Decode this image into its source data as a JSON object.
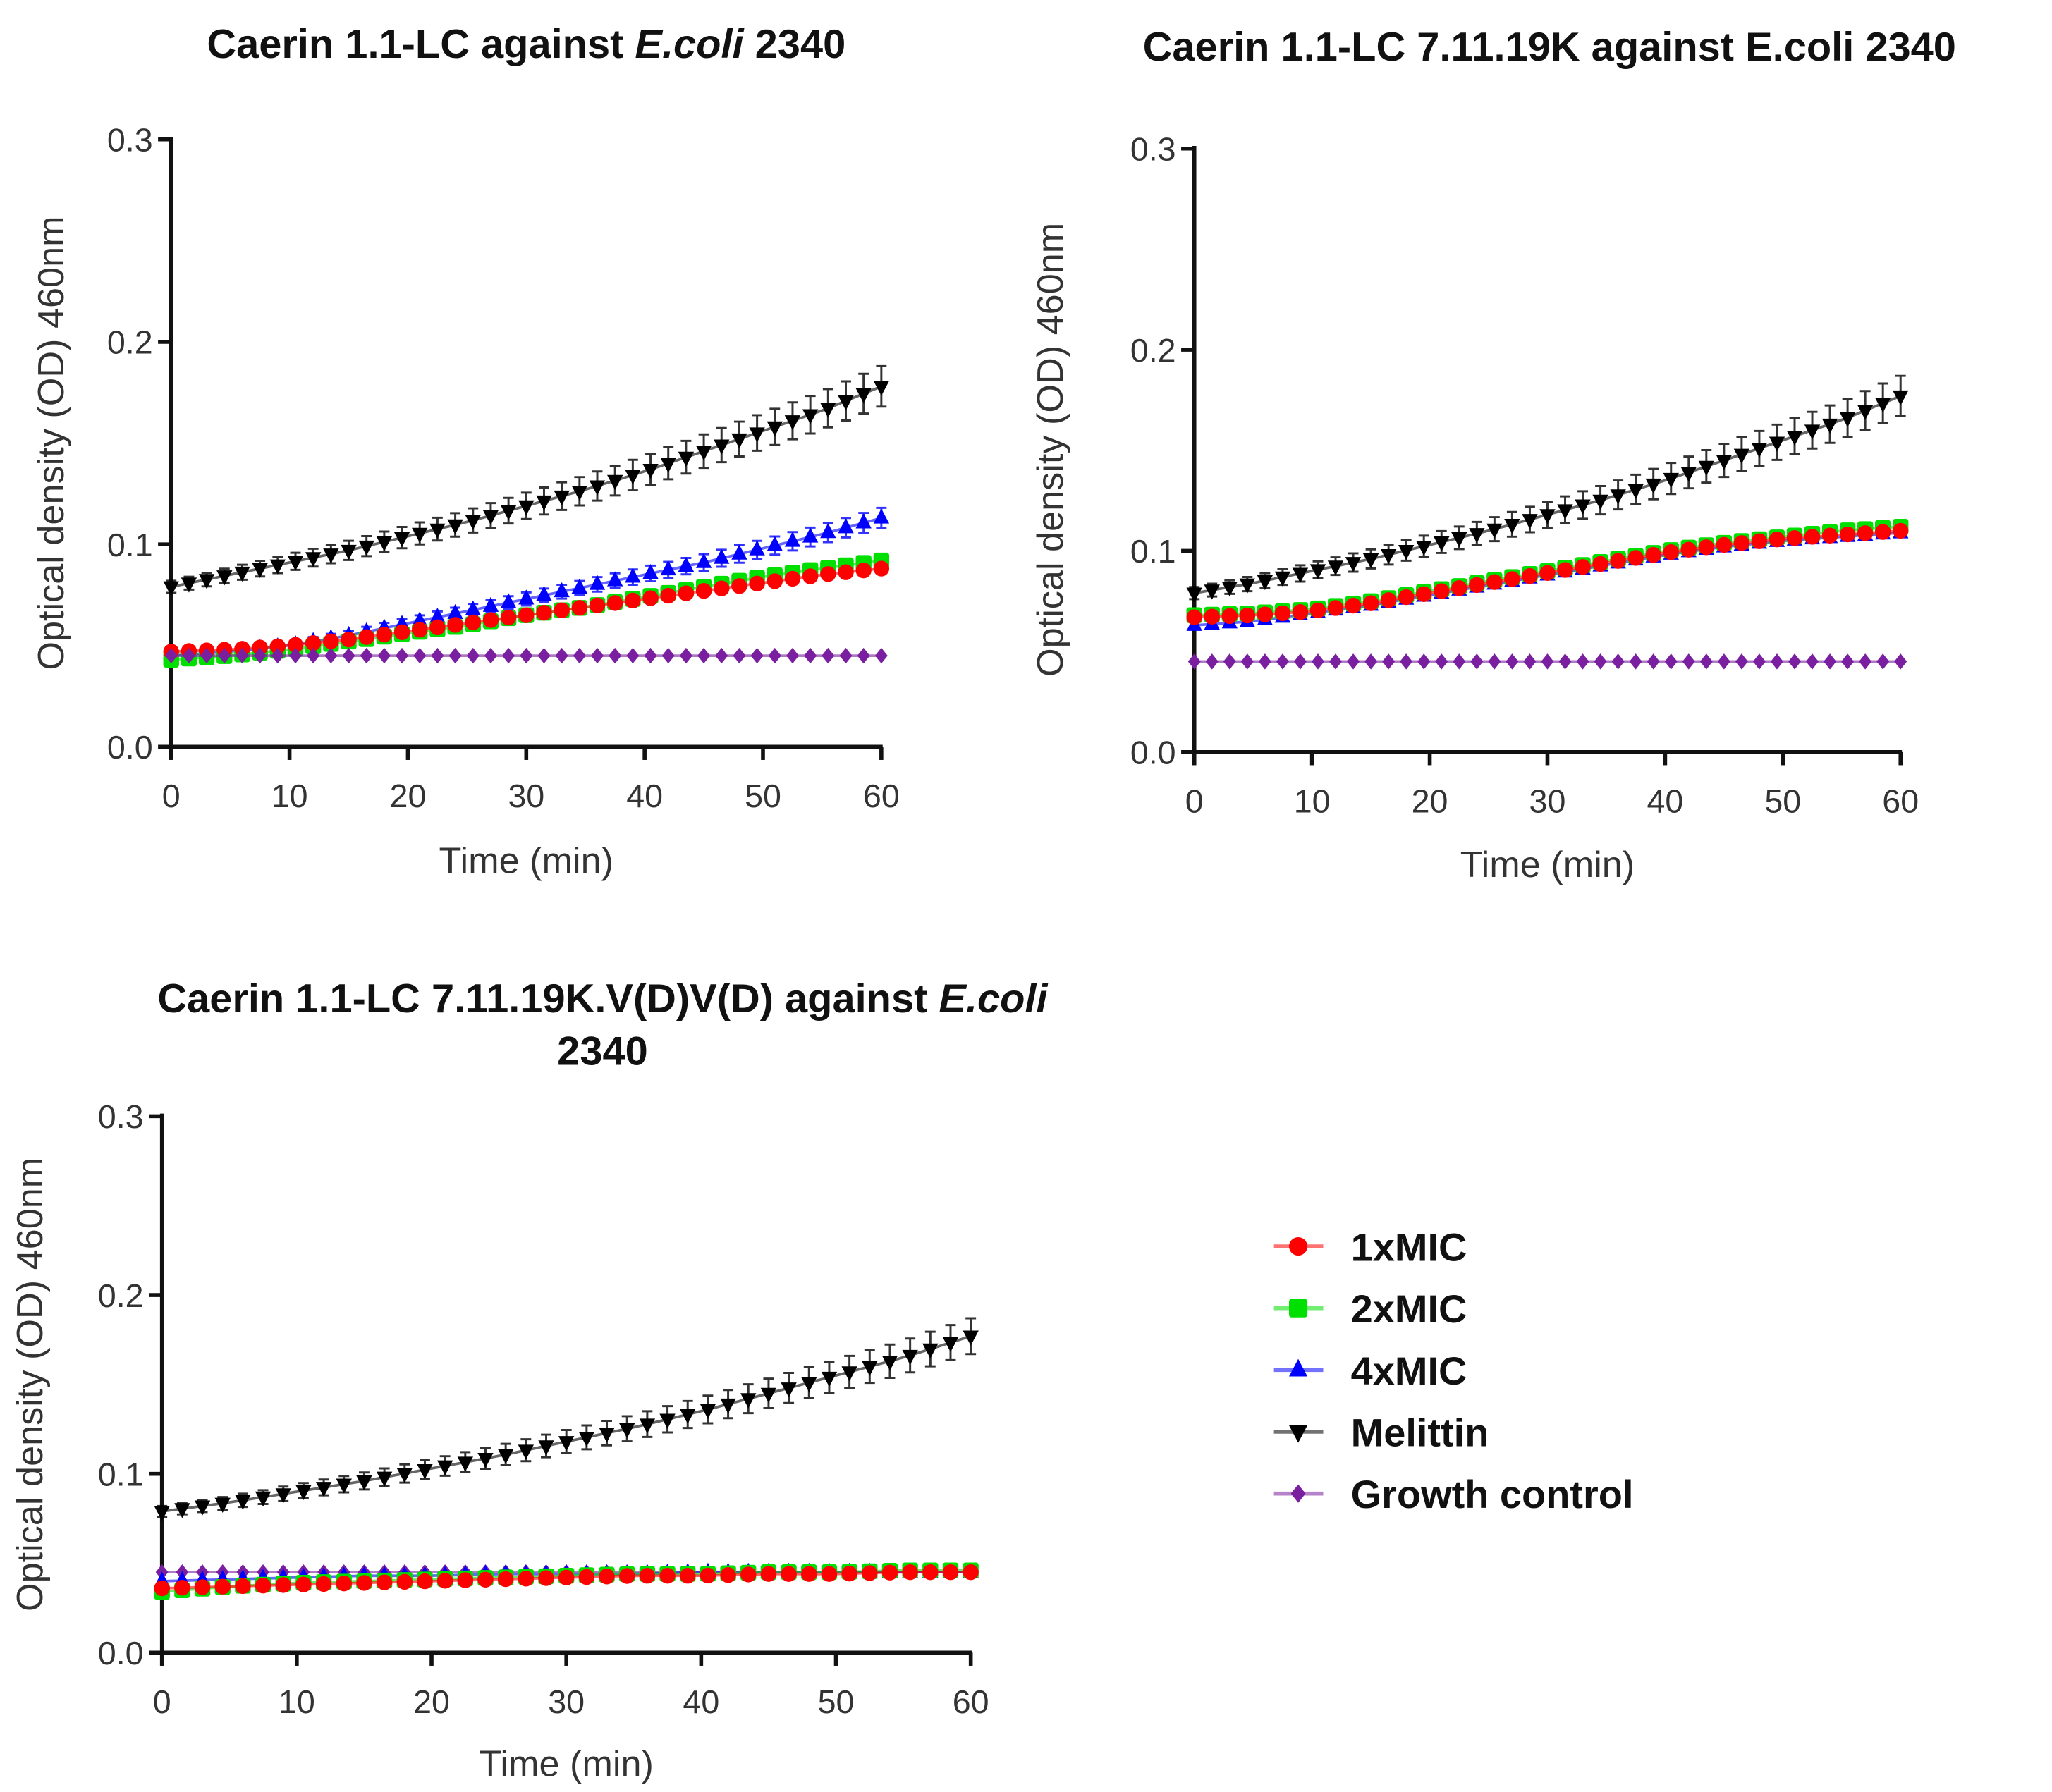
{
  "legend": [
    {
      "name": "1xMIC",
      "color": "#ff0000",
      "marker": "circle"
    },
    {
      "name": "2xMIC",
      "color": "#00e000",
      "marker": "square"
    },
    {
      "name": "4xMIC",
      "color": "#0000ff",
      "marker": "triangle-up"
    },
    {
      "name": "Melittin",
      "color": "#000000",
      "marker": "triangle-down"
    },
    {
      "name": "Growth control",
      "color": "#7a1fa0",
      "marker": "diamond"
    }
  ],
  "chart_data": [
    {
      "type": "line",
      "title": "Caerin 1.1-LC against ",
      "title_italic": "E.coli",
      "title_suffix": " 2340",
      "xlabel": "Time (min)",
      "ylabel": "Optical density (OD) 460nm",
      "xlim": [
        0,
        60
      ],
      "ylim": [
        0,
        0.3
      ],
      "xticks": [
        "0",
        "10",
        "20",
        "30",
        "40",
        "50",
        "60"
      ],
      "yticks": [
        "0.0",
        "0.1",
        "0.2",
        "0.3"
      ],
      "x": [
        0,
        5,
        10,
        15,
        20,
        25,
        30,
        35,
        40,
        45,
        50,
        55,
        60
      ],
      "series": [
        {
          "name": "Melittin",
          "values": [
            0.079,
            0.085,
            0.091,
            0.097,
            0.104,
            0.111,
            0.119,
            0.127,
            0.136,
            0.146,
            0.156,
            0.166,
            0.178
          ],
          "error": 0.01
        },
        {
          "name": "4xMIC",
          "values": [
            0.045,
            0.047,
            0.05,
            0.055,
            0.061,
            0.067,
            0.073,
            0.079,
            0.085,
            0.091,
            0.098,
            0.105,
            0.113
          ],
          "error": 0.005
        },
        {
          "name": "2xMIC",
          "values": [
            0.043,
            0.045,
            0.048,
            0.052,
            0.056,
            0.06,
            0.065,
            0.069,
            0.074,
            0.079,
            0.084,
            0.088,
            0.092
          ],
          "error": 0.002
        },
        {
          "name": "1xMIC",
          "values": [
            0.047,
            0.048,
            0.05,
            0.053,
            0.057,
            0.061,
            0.065,
            0.069,
            0.073,
            0.077,
            0.081,
            0.085,
            0.088
          ],
          "error": 0.002
        },
        {
          "name": "Growth control",
          "values": [
            0.045,
            0.045,
            0.045,
            0.045,
            0.045,
            0.045,
            0.045,
            0.045,
            0.045,
            0.045,
            0.045,
            0.045,
            0.045
          ],
          "error": 0.001
        }
      ]
    },
    {
      "type": "line",
      "title": "Caerin 1.1-LC 7.11.19K against E.coli 2340",
      "title_italic": "",
      "title_suffix": "",
      "xlabel": "Time (min)",
      "ylabel": "Optical density (OD) 460nm",
      "xlim": [
        0,
        60
      ],
      "ylim": [
        0,
        0.3
      ],
      "xticks": [
        "0",
        "10",
        "20",
        "30",
        "40",
        "50",
        "60"
      ],
      "yticks": [
        "0.0",
        "0.1",
        "0.2",
        "0.3"
      ],
      "x": [
        0,
        5,
        10,
        15,
        20,
        25,
        30,
        35,
        40,
        45,
        50,
        55,
        60
      ],
      "series": [
        {
          "name": "Melittin",
          "values": [
            0.079,
            0.084,
            0.09,
            0.096,
            0.103,
            0.11,
            0.118,
            0.126,
            0.135,
            0.145,
            0.155,
            0.165,
            0.177
          ],
          "error": 0.01
        },
        {
          "name": "4xMIC",
          "values": [
            0.063,
            0.065,
            0.069,
            0.073,
            0.078,
            0.083,
            0.088,
            0.093,
            0.098,
            0.102,
            0.105,
            0.107,
            0.109
          ],
          "error": 0.002
        },
        {
          "name": "2xMIC",
          "values": [
            0.068,
            0.069,
            0.071,
            0.075,
            0.08,
            0.085,
            0.09,
            0.095,
            0.1,
            0.104,
            0.107,
            0.11,
            0.112
          ],
          "error": 0.002
        },
        {
          "name": "1xMIC",
          "values": [
            0.067,
            0.068,
            0.07,
            0.074,
            0.079,
            0.084,
            0.089,
            0.094,
            0.099,
            0.103,
            0.106,
            0.108,
            0.11
          ],
          "error": 0.002
        },
        {
          "name": "Growth control",
          "values": [
            0.045,
            0.045,
            0.045,
            0.045,
            0.045,
            0.045,
            0.045,
            0.045,
            0.045,
            0.045,
            0.045,
            0.045,
            0.045
          ],
          "error": 0.001
        }
      ]
    },
    {
      "type": "line",
      "title": "Caerin 1.1-LC 7.11.19K.V(D)V(D) against ",
      "title_italic": "E.coli",
      "title_suffix": "",
      "title_line2": "2340",
      "xlabel": "Time (min)",
      "ylabel": "Optical density (OD) 460nm",
      "xlim": [
        0,
        60
      ],
      "ylim": [
        0,
        0.3
      ],
      "xticks": [
        "0",
        "10",
        "20",
        "30",
        "40",
        "50",
        "60"
      ],
      "yticks": [
        "0.0",
        "0.1",
        "0.2",
        "0.3"
      ],
      "x": [
        0,
        5,
        10,
        15,
        20,
        25,
        30,
        35,
        40,
        45,
        50,
        55,
        60
      ],
      "series": [
        {
          "name": "Melittin",
          "values": [
            0.079,
            0.084,
            0.09,
            0.096,
            0.103,
            0.11,
            0.118,
            0.126,
            0.135,
            0.145,
            0.155,
            0.165,
            0.177
          ],
          "error": 0.01
        },
        {
          "name": "Growth control",
          "values": [
            0.045,
            0.045,
            0.045,
            0.045,
            0.045,
            0.045,
            0.045,
            0.045,
            0.045,
            0.045,
            0.045,
            0.045,
            0.045
          ],
          "error": 0.001
        },
        {
          "name": "4xMIC",
          "values": [
            0.04,
            0.041,
            0.042,
            0.043,
            0.043,
            0.044,
            0.044,
            0.044,
            0.045,
            0.045,
            0.045,
            0.045,
            0.045
          ],
          "error": 0.001
        },
        {
          "name": "2xMIC",
          "values": [
            0.034,
            0.037,
            0.039,
            0.04,
            0.041,
            0.042,
            0.043,
            0.044,
            0.044,
            0.045,
            0.045,
            0.046,
            0.046
          ],
          "error": 0.001
        },
        {
          "name": "1xMIC",
          "values": [
            0.036,
            0.037,
            0.038,
            0.039,
            0.04,
            0.041,
            0.042,
            0.043,
            0.043,
            0.044,
            0.044,
            0.045,
            0.045
          ],
          "error": 0.001
        }
      ]
    }
  ]
}
